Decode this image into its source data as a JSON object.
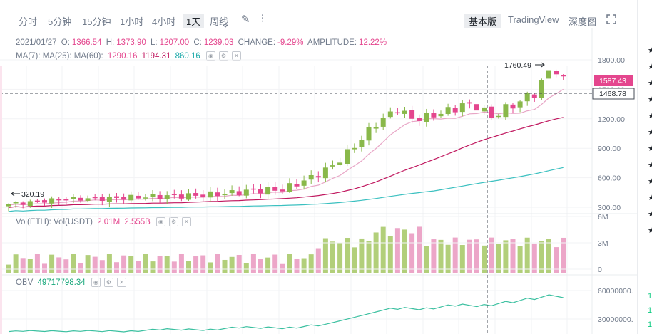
{
  "toolbar": {
    "intervals": [
      "分时",
      "5分钟",
      "15分钟",
      "1小时",
      "4小时",
      "1天",
      "周线"
    ],
    "active_interval": "1天",
    "views": [
      "基本版",
      "TradingView",
      "深度图"
    ],
    "active_view": "基本版"
  },
  "legend": {
    "date": "2021/01/27",
    "o_label": "O:",
    "o": "1366.54",
    "h_label": "H:",
    "h": "1373.90",
    "l_label": "L:",
    "l": "1207.00",
    "c_label": "C:",
    "c": "1239.03",
    "change_label": "CHANGE:",
    "change": "-9.29%",
    "amp_label": "AMPLITUDE:",
    "amp": "12.22%",
    "ma_label": "MA(7): MA(25): MA(60):",
    "ma7": "1290.16",
    "ma25": "1194.31",
    "ma60": "860.16",
    "vol_label": "Vol(ETH): Vol(USDT)",
    "vol_eth": "2.01M",
    "vol_usdt": "2.555B",
    "obv_label": "OBV",
    "obv": "49717798.34"
  },
  "price_axis": {
    "ticks": [
      "1800.00",
      "1500.00",
      "1200.00",
      "900.00",
      "600.00",
      "300.00"
    ]
  },
  "vol_axis": {
    "ticks": [
      "6M",
      "3M",
      "0"
    ]
  },
  "obv_axis": {
    "ticks": [
      "60000000.",
      "30000000."
    ]
  },
  "labels": {
    "current_price": "1587.43",
    "crosshair_price": "1468.78",
    "high_marker": "1760.49",
    "low_marker": "320.19"
  },
  "colors": {
    "up": "#b2cf7a",
    "down": "#e4468e",
    "up_dark": "#89b84a",
    "ma7": "#e8a6c6",
    "ma25": "#c0185f",
    "ma60": "#3bc0c0",
    "obv": "#3bc0a0"
  },
  "sidebar": {
    "stars": [
      "★",
      "★",
      "★",
      "★",
      "★",
      "★",
      "★",
      "★",
      "★",
      "★",
      "★",
      "★"
    ],
    "tail": [
      "1",
      "1",
      "1"
    ]
  }
}
